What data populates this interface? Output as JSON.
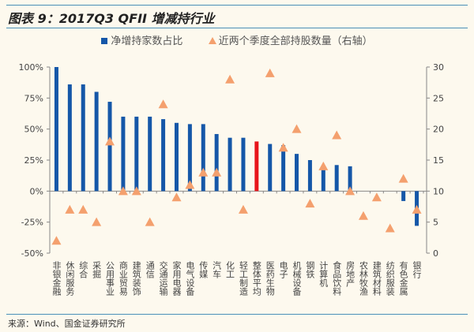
{
  "header": {
    "title": "图表 9：2017Q3 QFII 增减持行业"
  },
  "footer": {
    "source": "来源：Wind、国金证券研究所"
  },
  "chart_data": {
    "type": "bar",
    "title": "2017Q3 QFII 增减持行业",
    "legend_position": "top",
    "categories": [
      "非银金融",
      "休闲服务",
      "综合",
      "采掘",
      "公用事业",
      "商业贸易",
      "建筑装饰",
      "通信",
      "交通运输",
      "家用电器",
      "电气设备",
      "传媒",
      "汽车",
      "化工",
      "轻工制造",
      "整体平均",
      "医药生物",
      "电子",
      "机械设备",
      "钢铁",
      "计算机",
      "食品饮料",
      "房地产",
      "农林牧渔",
      "建筑材料",
      "纺织服装",
      "有色金属",
      "银行"
    ],
    "series": [
      {
        "name": "净增持家数占比",
        "type": "bar",
        "axis": "left",
        "color": "#1557a8",
        "highlight": {
          "category": "整体平均",
          "color": "#e8141b"
        },
        "values": [
          100,
          86,
          86,
          80,
          72,
          60,
          60,
          60,
          58,
          55,
          54,
          54,
          46,
          43,
          43,
          40,
          38,
          37,
          30,
          25,
          18,
          21,
          20,
          0,
          0,
          0,
          -8,
          -28
        ]
      },
      {
        "name": "近两个季度全部持股数量（右轴）",
        "type": "scatter",
        "marker": "triangle",
        "axis": "right",
        "color": "#f4a06e",
        "values": [
          2,
          7,
          7,
          5,
          18,
          10,
          10,
          5,
          24,
          9,
          11,
          13,
          13,
          28,
          7,
          null,
          29,
          17,
          20,
          8,
          14,
          19,
          10,
          6,
          9,
          4,
          12,
          7
        ]
      }
    ],
    "left_axis": {
      "ylim": [
        -50,
        100
      ],
      "ticks": [
        "-50%",
        "-25%",
        "0%",
        "25%",
        "50%",
        "75%",
        "100%"
      ],
      "tick_values": [
        -50,
        -25,
        0,
        25,
        50,
        75,
        100
      ]
    },
    "right_axis": {
      "ylim": [
        0,
        30
      ],
      "ticks": [
        "0",
        "5",
        "10",
        "15",
        "20",
        "25",
        "30"
      ],
      "tick_values": [
        0,
        5,
        10,
        15,
        20,
        25,
        30
      ]
    },
    "grid": false
  }
}
